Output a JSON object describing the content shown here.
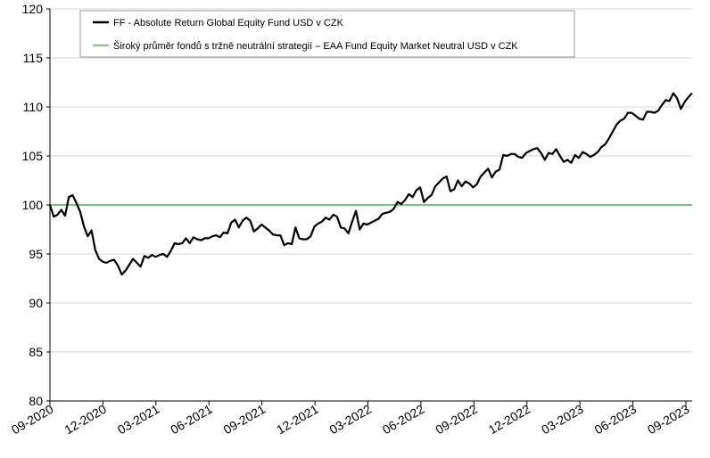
{
  "chart_data": {
    "type": "line",
    "title": "",
    "xlabel": "",
    "ylabel": "",
    "ylim": [
      80,
      120
    ],
    "yticks": [
      "80",
      "85",
      "90",
      "95",
      "100",
      "105",
      "110",
      "115",
      "120"
    ],
    "xticks": [
      "09-2020",
      "12-2020",
      "03-2021",
      "06-2021",
      "09-2021",
      "12-2021",
      "03-2022",
      "06-2022",
      "09-2022",
      "12-2022",
      "03-2023",
      "06-2023",
      "09-2023"
    ],
    "grid": "horizontal",
    "legend_position": "top-left",
    "series": [
      {
        "name": "FF - Absolute Return Global Equity Fund USD v CZK",
        "color": "#000000",
        "values": [
          100.0,
          98.8,
          99.0,
          99.5,
          98.9,
          100.8,
          101.0,
          100.2,
          99.3,
          97.8,
          96.8,
          97.4,
          95.4,
          94.5,
          94.2,
          94.1,
          94.3,
          94.4,
          93.8,
          92.9,
          93.3,
          93.9,
          94.5,
          94.1,
          93.7,
          94.8,
          94.6,
          94.9,
          94.7,
          94.9,
          95.0,
          94.7,
          95.3,
          96.1,
          96.0,
          96.1,
          96.6,
          96.1,
          96.7,
          96.5,
          96.4,
          96.6,
          96.6,
          96.8,
          96.9,
          96.7,
          97.2,
          97.1,
          98.2,
          98.5,
          97.7,
          98.4,
          98.7,
          98.4,
          97.3,
          97.6,
          98.0,
          97.7,
          97.4,
          97.0,
          96.9,
          96.9,
          95.9,
          96.1,
          96.0,
          97.7,
          96.6,
          96.5,
          96.5,
          96.8,
          97.8,
          98.1,
          98.3,
          98.7,
          98.5,
          99.0,
          98.8,
          97.7,
          97.6,
          97.1,
          98.3,
          99.4,
          97.5,
          98.1,
          98.0,
          98.2,
          98.4,
          98.6,
          99.1,
          99.2,
          99.3,
          99.6,
          100.3,
          100.1,
          100.5,
          101.1,
          100.8,
          101.5,
          101.8,
          100.3,
          100.7,
          101.0,
          101.9,
          102.3,
          102.7,
          102.9,
          101.4,
          101.6,
          102.5,
          101.9,
          102.4,
          102.2,
          101.8,
          102.1,
          102.9,
          103.3,
          103.7,
          102.8,
          103.4,
          103.6,
          105.1,
          105.0,
          105.2,
          105.2,
          104.9,
          104.8,
          105.3,
          105.5,
          105.7,
          105.8,
          105.3,
          104.6,
          105.3,
          105.2,
          105.7,
          105.0,
          104.4,
          104.6,
          104.3,
          105.1,
          104.8,
          105.4,
          105.2,
          104.9,
          105.1,
          105.4,
          105.9,
          106.2,
          106.8,
          107.5,
          108.2,
          108.6,
          108.8,
          109.4,
          109.4,
          109.1,
          108.8,
          108.7,
          109.5,
          109.5,
          109.4,
          109.6,
          110.2,
          110.7,
          110.6,
          111.4,
          110.9,
          109.8,
          110.5,
          111.0,
          111.4
        ]
      },
      {
        "name": "Široký průměr fondů s tržně neutrální strategií – EAA Fund Equity Market Neutral USD v CZK",
        "color": "#2ca02c",
        "values": [
          100,
          100
        ]
      }
    ]
  }
}
